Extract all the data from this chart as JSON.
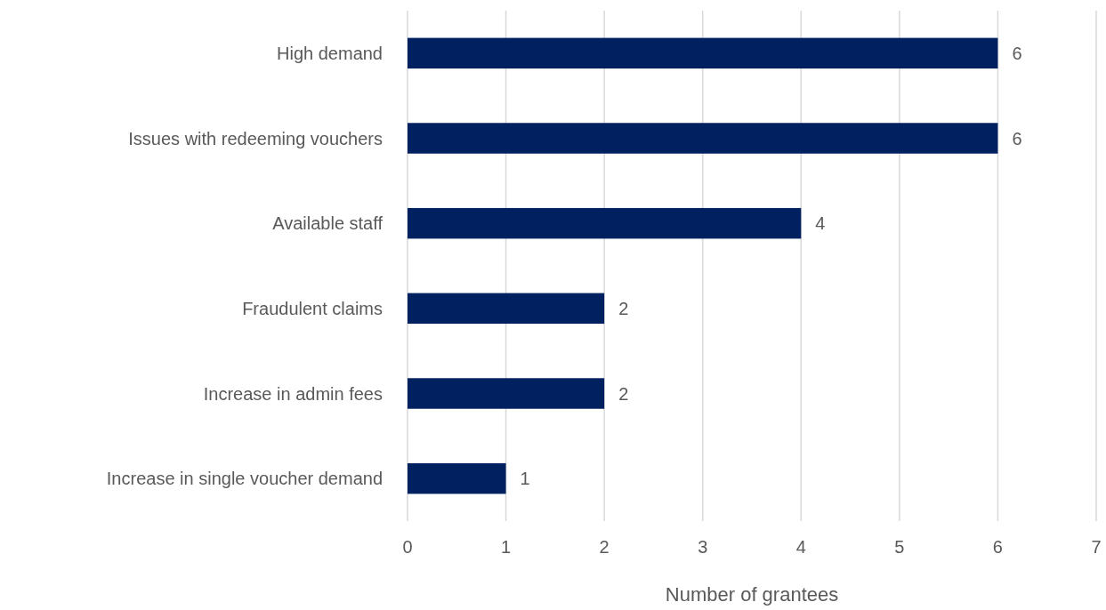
{
  "chart_data": {
    "type": "bar",
    "orientation": "horizontal",
    "xlabel": "Number of grantees",
    "categories": [
      "High demand",
      "Issues with redeeming vouchers",
      "Available staff",
      "Fraudulent claims",
      "Increase in admin fees",
      "Increase in single voucher demand"
    ],
    "values": [
      6,
      6,
      4,
      2,
      2,
      1
    ],
    "color": "#002060",
    "xlim": [
      0,
      7
    ],
    "xticks": [
      0,
      1,
      2,
      3,
      4,
      5,
      6,
      7
    ],
    "grid": "x",
    "data_labels": true
  }
}
